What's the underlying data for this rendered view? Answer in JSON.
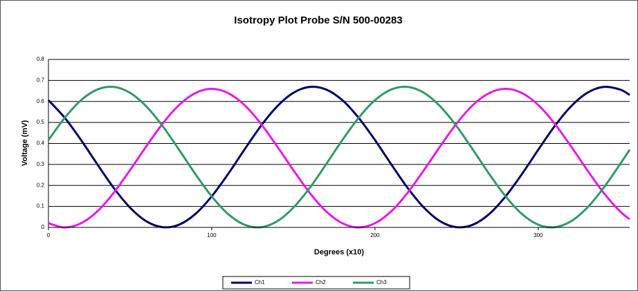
{
  "chart_data": {
    "type": "line",
    "title": "Isotropy Plot Probe S/N 500-00283",
    "x_label": "Degrees (x10)",
    "y_label": "Voltage (mV)",
    "x": [
      0,
      10,
      20,
      30,
      40,
      50,
      60,
      70,
      80,
      90,
      100,
      110,
      120,
      130,
      140,
      150,
      160,
      170,
      180,
      190,
      200,
      210,
      220,
      230,
      240,
      250,
      260,
      270,
      280,
      290,
      300,
      310,
      320,
      330,
      340,
      350,
      356
    ],
    "series": [
      {
        "name": "Ch1",
        "color": "#000066",
        "values": [
          0.606,
          0.522,
          0.416,
          0.3,
          0.188,
          0.094,
          0.029,
          0.001,
          0.013,
          0.064,
          0.148,
          0.254,
          0.37,
          0.482,
          0.576,
          0.641,
          0.669,
          0.657,
          0.606,
          0.522,
          0.416,
          0.3,
          0.188,
          0.094,
          0.029,
          0.001,
          0.013,
          0.064,
          0.148,
          0.254,
          0.37,
          0.482,
          0.576,
          0.641,
          0.669,
          0.657,
          0.631
        ]
      },
      {
        "name": "Ch2",
        "color": "#e619e6",
        "values": [
          0.02,
          0.0,
          0.02,
          0.077,
          0.165,
          0.273,
          0.387,
          0.495,
          0.583,
          0.64,
          0.66,
          0.64,
          0.583,
          0.495,
          0.387,
          0.273,
          0.165,
          0.077,
          0.02,
          0.0,
          0.02,
          0.077,
          0.165,
          0.273,
          0.387,
          0.495,
          0.583,
          0.64,
          0.66,
          0.64,
          0.583,
          0.495,
          0.387,
          0.273,
          0.165,
          0.077,
          0.039
        ]
      },
      {
        "name": "Ch3",
        "color": "#339966",
        "values": [
          0.416,
          0.522,
          0.606,
          0.657,
          0.669,
          0.641,
          0.576,
          0.482,
          0.37,
          0.254,
          0.148,
          0.064,
          0.013,
          0.001,
          0.029,
          0.094,
          0.188,
          0.3,
          0.416,
          0.522,
          0.606,
          0.657,
          0.669,
          0.641,
          0.576,
          0.482,
          0.37,
          0.254,
          0.148,
          0.064,
          0.013,
          0.001,
          0.029,
          0.094,
          0.188,
          0.3,
          0.37
        ]
      }
    ],
    "xlim": [
      0,
      356
    ],
    "xticks": [
      0,
      100,
      200,
      300
    ],
    "ylim": [
      0,
      0.8
    ],
    "yticks": [
      0,
      0.1,
      0.2,
      0.3,
      0.4,
      0.5,
      0.6,
      0.7,
      0.8
    ],
    "grid": true,
    "legend": "bottom"
  }
}
